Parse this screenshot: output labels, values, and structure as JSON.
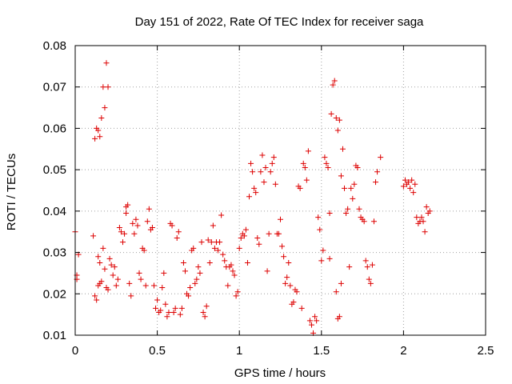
{
  "chart_data": {
    "type": "scatter",
    "title": "Day 151 of 2022, Rate Of TEC Index for receiver saga",
    "xlabel": "GPS time / hours",
    "ylabel": "ROTI / TECUs",
    "xlim": [
      0,
      2.5
    ],
    "ylim": [
      0.01,
      0.08
    ],
    "xticks": [
      0,
      0.5,
      1,
      1.5,
      2,
      2.5
    ],
    "xtick_labels": [
      "0",
      "0.5",
      "1",
      "1.5",
      "2",
      "2.5"
    ],
    "yticks": [
      0.01,
      0.02,
      0.03,
      0.04,
      0.05,
      0.06,
      0.07,
      0.08
    ],
    "ytick_labels": [
      "0.01",
      "0.02",
      "0.03",
      "0.04",
      "0.05",
      "0.06",
      "0.07",
      "0.08"
    ],
    "grid": true,
    "marker": "+",
    "color": "#dd0000",
    "series": [
      {
        "name": "ROTI",
        "points": [
          [
            0.0,
            0.035
          ],
          [
            0.01,
            0.0235
          ],
          [
            0.01,
            0.0245
          ],
          [
            0.02,
            0.0295
          ],
          [
            0.11,
            0.034
          ],
          [
            0.12,
            0.0195
          ],
          [
            0.13,
            0.0185
          ],
          [
            0.12,
            0.0575
          ],
          [
            0.13,
            0.06
          ],
          [
            0.14,
            0.0595
          ],
          [
            0.15,
            0.058
          ],
          [
            0.16,
            0.0625
          ],
          [
            0.17,
            0.07
          ],
          [
            0.18,
            0.065
          ],
          [
            0.19,
            0.0758
          ],
          [
            0.2,
            0.07
          ],
          [
            0.14,
            0.029
          ],
          [
            0.15,
            0.0275
          ],
          [
            0.14,
            0.022
          ],
          [
            0.15,
            0.0225
          ],
          [
            0.16,
            0.023
          ],
          [
            0.17,
            0.031
          ],
          [
            0.18,
            0.026
          ],
          [
            0.19,
            0.0215
          ],
          [
            0.2,
            0.021
          ],
          [
            0.21,
            0.0285
          ],
          [
            0.22,
            0.027
          ],
          [
            0.23,
            0.0245
          ],
          [
            0.24,
            0.0265
          ],
          [
            0.25,
            0.022
          ],
          [
            0.26,
            0.0235
          ],
          [
            0.27,
            0.036
          ],
          [
            0.28,
            0.035
          ],
          [
            0.29,
            0.0325
          ],
          [
            0.3,
            0.0345
          ],
          [
            0.31,
            0.0395
          ],
          [
            0.31,
            0.041
          ],
          [
            0.32,
            0.0415
          ],
          [
            0.33,
            0.0225
          ],
          [
            0.34,
            0.0195
          ],
          [
            0.35,
            0.037
          ],
          [
            0.36,
            0.0345
          ],
          [
            0.37,
            0.038
          ],
          [
            0.38,
            0.0365
          ],
          [
            0.39,
            0.025
          ],
          [
            0.4,
            0.0235
          ],
          [
            0.41,
            0.031
          ],
          [
            0.42,
            0.0305
          ],
          [
            0.43,
            0.022
          ],
          [
            0.44,
            0.0375
          ],
          [
            0.45,
            0.0405
          ],
          [
            0.46,
            0.0355
          ],
          [
            0.47,
            0.036
          ],
          [
            0.48,
            0.022
          ],
          [
            0.49,
            0.0165
          ],
          [
            0.5,
            0.0185
          ],
          [
            0.51,
            0.0155
          ],
          [
            0.52,
            0.016
          ],
          [
            0.53,
            0.0215
          ],
          [
            0.54,
            0.025
          ],
          [
            0.55,
            0.0175
          ],
          [
            0.56,
            0.0145
          ],
          [
            0.57,
            0.0155
          ],
          [
            0.58,
            0.037
          ],
          [
            0.59,
            0.0365
          ],
          [
            0.6,
            0.0155
          ],
          [
            0.61,
            0.0165
          ],
          [
            0.62,
            0.0335
          ],
          [
            0.63,
            0.035
          ],
          [
            0.64,
            0.015
          ],
          [
            0.65,
            0.0165
          ],
          [
            0.66,
            0.0275
          ],
          [
            0.67,
            0.0255
          ],
          [
            0.68,
            0.02
          ],
          [
            0.69,
            0.0195
          ],
          [
            0.7,
            0.0215
          ],
          [
            0.71,
            0.0305
          ],
          [
            0.72,
            0.031
          ],
          [
            0.73,
            0.0225
          ],
          [
            0.74,
            0.0235
          ],
          [
            0.75,
            0.0265
          ],
          [
            0.76,
            0.025
          ],
          [
            0.77,
            0.0325
          ],
          [
            0.78,
            0.0155
          ],
          [
            0.79,
            0.0145
          ],
          [
            0.8,
            0.017
          ],
          [
            0.81,
            0.033
          ],
          [
            0.82,
            0.0275
          ],
          [
            0.83,
            0.0325
          ],
          [
            0.84,
            0.0365
          ],
          [
            0.85,
            0.031
          ],
          [
            0.86,
            0.0325
          ],
          [
            0.87,
            0.0305
          ],
          [
            0.88,
            0.0325
          ],
          [
            0.89,
            0.039
          ],
          [
            0.9,
            0.0295
          ],
          [
            0.91,
            0.028
          ],
          [
            0.92,
            0.0265
          ],
          [
            0.93,
            0.022
          ],
          [
            0.94,
            0.0265
          ],
          [
            0.95,
            0.027
          ],
          [
            0.96,
            0.0255
          ],
          [
            0.97,
            0.0245
          ],
          [
            0.98,
            0.0195
          ],
          [
            0.99,
            0.0205
          ],
          [
            1.0,
            0.031
          ],
          [
            1.01,
            0.0335
          ],
          [
            1.02,
            0.0345
          ],
          [
            1.03,
            0.034
          ],
          [
            1.04,
            0.0355
          ],
          [
            1.05,
            0.0275
          ],
          [
            1.06,
            0.0435
          ],
          [
            1.07,
            0.0515
          ],
          [
            1.08,
            0.0495
          ],
          [
            1.09,
            0.0455
          ],
          [
            1.1,
            0.0445
          ],
          [
            1.11,
            0.0335
          ],
          [
            1.12,
            0.032
          ],
          [
            1.13,
            0.0495
          ],
          [
            1.14,
            0.0535
          ],
          [
            1.15,
            0.047
          ],
          [
            1.16,
            0.0505
          ],
          [
            1.17,
            0.0255
          ],
          [
            1.18,
            0.0345
          ],
          [
            1.19,
            0.0495
          ],
          [
            1.2,
            0.0515
          ],
          [
            1.21,
            0.053
          ],
          [
            1.22,
            0.0465
          ],
          [
            1.23,
            0.0345
          ],
          [
            1.24,
            0.0345
          ],
          [
            1.25,
            0.038
          ],
          [
            1.26,
            0.0315
          ],
          [
            1.27,
            0.029
          ],
          [
            1.28,
            0.0225
          ],
          [
            1.29,
            0.024
          ],
          [
            1.3,
            0.0275
          ],
          [
            1.31,
            0.022
          ],
          [
            1.32,
            0.0175
          ],
          [
            1.33,
            0.018
          ],
          [
            1.34,
            0.021
          ],
          [
            1.35,
            0.0205
          ],
          [
            1.36,
            0.046
          ],
          [
            1.37,
            0.0455
          ],
          [
            1.38,
            0.0165
          ],
          [
            1.39,
            0.0515
          ],
          [
            1.4,
            0.0505
          ],
          [
            1.41,
            0.0475
          ],
          [
            1.42,
            0.0545
          ],
          [
            1.43,
            0.0135
          ],
          [
            1.44,
            0.0125
          ],
          [
            1.45,
            0.0105
          ],
          [
            1.46,
            0.0145
          ],
          [
            1.47,
            0.0135
          ],
          [
            1.48,
            0.0385
          ],
          [
            1.49,
            0.0355
          ],
          [
            1.5,
            0.028
          ],
          [
            1.51,
            0.0305
          ],
          [
            1.52,
            0.053
          ],
          [
            1.53,
            0.0515
          ],
          [
            1.54,
            0.0505
          ],
          [
            1.55,
            0.0285
          ],
          [
            1.56,
            0.0635
          ],
          [
            1.57,
            0.0705
          ],
          [
            1.58,
            0.0715
          ],
          [
            1.59,
            0.0625
          ],
          [
            1.6,
            0.0595
          ],
          [
            1.61,
            0.062
          ],
          [
            1.62,
            0.0485
          ],
          [
            1.63,
            0.055
          ],
          [
            1.64,
            0.0455
          ],
          [
            1.65,
            0.0395
          ],
          [
            1.66,
            0.0405
          ],
          [
            1.67,
            0.0265
          ],
          [
            1.68,
            0.0455
          ],
          [
            1.69,
            0.043
          ],
          [
            1.7,
            0.0465
          ],
          [
            1.71,
            0.051
          ],
          [
            1.72,
            0.0505
          ],
          [
            1.73,
            0.0405
          ],
          [
            1.74,
            0.0385
          ],
          [
            1.75,
            0.038
          ],
          [
            1.76,
            0.0375
          ],
          [
            1.77,
            0.028
          ],
          [
            1.78,
            0.0265
          ],
          [
            1.79,
            0.0235
          ],
          [
            1.8,
            0.0225
          ],
          [
            1.81,
            0.027
          ],
          [
            1.82,
            0.0375
          ],
          [
            1.83,
            0.047
          ],
          [
            1.84,
            0.0495
          ],
          [
            1.86,
            0.053
          ],
          [
            1.6,
            0.014
          ],
          [
            1.61,
            0.0145
          ],
          [
            1.59,
            0.0205
          ],
          [
            1.62,
            0.0225
          ],
          [
            1.55,
            0.0395
          ],
          [
            2.0,
            0.046
          ],
          [
            2.01,
            0.0475
          ],
          [
            2.02,
            0.0465
          ],
          [
            2.03,
            0.047
          ],
          [
            2.04,
            0.0455
          ],
          [
            2.05,
            0.0475
          ],
          [
            2.06,
            0.0445
          ],
          [
            2.07,
            0.0465
          ],
          [
            2.08,
            0.0385
          ],
          [
            2.09,
            0.037
          ],
          [
            2.1,
            0.0375
          ],
          [
            2.11,
            0.0385
          ],
          [
            2.12,
            0.0375
          ],
          [
            2.13,
            0.035
          ],
          [
            2.14,
            0.041
          ],
          [
            2.15,
            0.0395
          ],
          [
            2.16,
            0.04
          ]
        ]
      }
    ]
  }
}
